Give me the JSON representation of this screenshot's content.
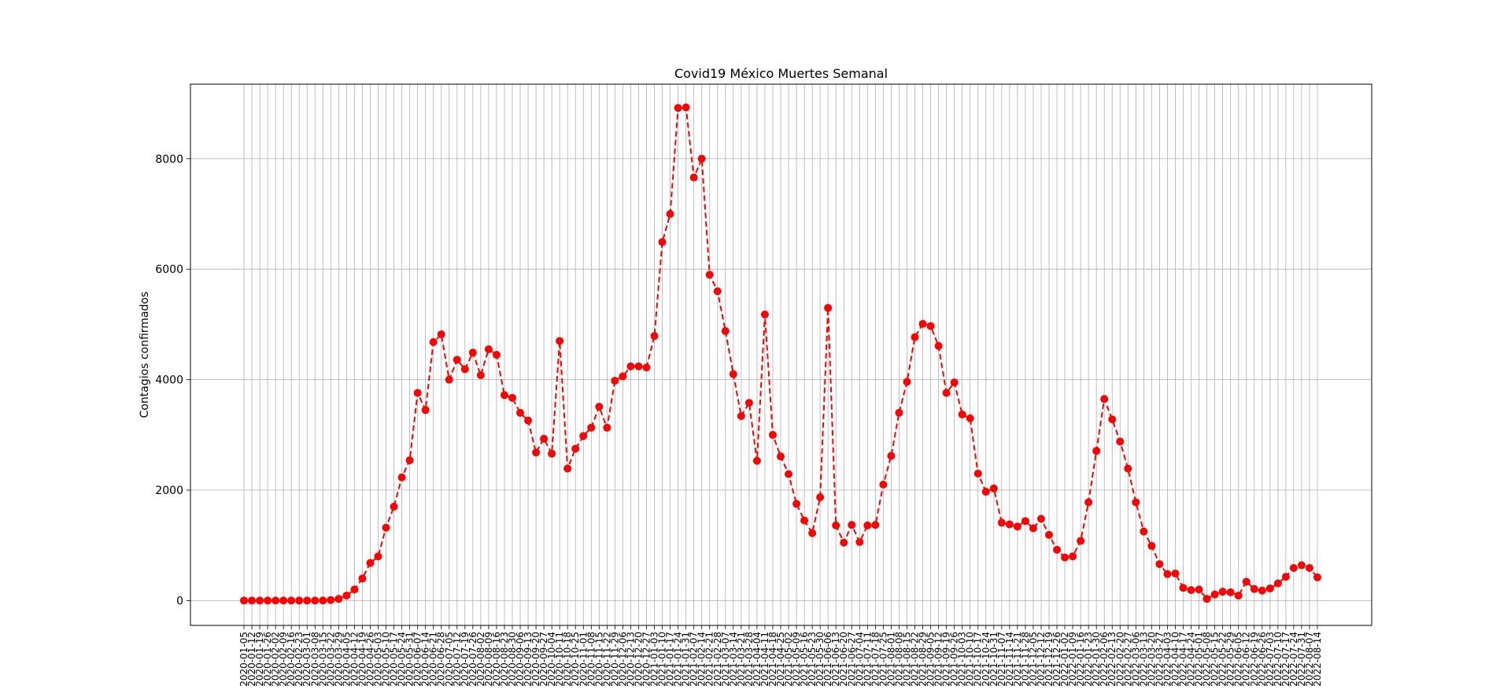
{
  "chart_data": {
    "type": "line",
    "title": "Covid19 México Muertes Semanal",
    "xlabel": "",
    "ylabel": "Contagios confirmados",
    "ylim": [
      -450,
      9350
    ],
    "yticks": [
      0,
      2000,
      4000,
      6000,
      8000
    ],
    "grid": true,
    "series": [
      {
        "color": "#ff0000",
        "line_style": "dashed",
        "marker": "circle",
        "x": [
          "2020-01-05",
          "2020-01-12",
          "2020-01-19",
          "2020-01-26",
          "2020-02-02",
          "2020-02-09",
          "2020-02-16",
          "2020-02-23",
          "2020-03-01",
          "2020-03-08",
          "2020-03-15",
          "2020-03-22",
          "2020-03-29",
          "2020-04-05",
          "2020-04-12",
          "2020-04-19",
          "2020-04-26",
          "2020-05-03",
          "2020-05-10",
          "2020-05-17",
          "2020-05-24",
          "2020-05-31",
          "2020-06-07",
          "2020-06-14",
          "2020-06-21",
          "2020-06-28",
          "2020-07-05",
          "2020-07-12",
          "2020-07-19",
          "2020-07-26",
          "2020-08-02",
          "2020-08-09",
          "2020-08-16",
          "2020-08-23",
          "2020-08-30",
          "2020-09-06",
          "2020-09-13",
          "2020-09-20",
          "2020-09-27",
          "2020-10-04",
          "2020-10-11",
          "2020-10-18",
          "2020-10-25",
          "2020-11-01",
          "2020-11-08",
          "2020-11-15",
          "2020-11-22",
          "2020-11-29",
          "2020-12-06",
          "2020-12-13",
          "2020-12-20",
          "2020-12-27",
          "2021-01-03",
          "2021-01-10",
          "2021-01-17",
          "2021-01-24",
          "2021-01-31",
          "2021-02-07",
          "2021-02-14",
          "2021-02-21",
          "2021-02-28",
          "2021-03-07",
          "2021-03-14",
          "2021-03-21",
          "2021-03-28",
          "2021-04-04",
          "2021-04-11",
          "2021-04-18",
          "2021-04-25",
          "2021-05-02",
          "2021-05-09",
          "2021-05-16",
          "2021-05-23",
          "2021-05-30",
          "2021-06-06",
          "2021-06-13",
          "2021-06-20",
          "2021-06-27",
          "2021-07-04",
          "2021-07-11",
          "2021-07-18",
          "2021-07-25",
          "2021-08-01",
          "2021-08-08",
          "2021-08-15",
          "2021-08-22",
          "2021-08-29",
          "2021-09-05",
          "2021-09-12",
          "2021-09-19",
          "2021-09-26",
          "2021-10-03",
          "2021-10-10",
          "2021-10-17",
          "2021-10-24",
          "2021-10-31",
          "2021-11-07",
          "2021-11-14",
          "2021-11-21",
          "2021-11-28",
          "2021-12-05",
          "2021-12-12",
          "2021-12-19",
          "2021-12-26",
          "2022-01-02",
          "2022-01-09",
          "2022-01-16",
          "2022-01-23",
          "2022-01-30",
          "2022-02-06",
          "2022-02-13",
          "2022-02-20",
          "2022-02-27",
          "2022-03-06",
          "2022-03-13",
          "2022-03-20",
          "2022-03-27",
          "2022-04-03",
          "2022-04-10",
          "2022-04-17",
          "2022-04-24",
          "2022-05-01",
          "2022-05-08",
          "2022-05-15",
          "2022-05-22",
          "2022-05-29",
          "2022-06-05",
          "2022-06-12",
          "2022-06-19",
          "2022-06-26",
          "2022-07-03",
          "2022-07-10",
          "2022-07-17",
          "2022-07-24",
          "2022-07-31",
          "2022-08-07",
          "2022-08-14"
        ],
        "values": [
          0,
          0,
          0,
          0,
          0,
          0,
          0,
          0,
          0,
          0,
          0,
          10,
          30,
          90,
          200,
          400,
          680,
          800,
          1320,
          1700,
          2230,
          2540,
          3760,
          3450,
          4680,
          4820,
          4000,
          4360,
          4190,
          4490,
          4080,
          4550,
          4450,
          3720,
          3670,
          3400,
          3260,
          2680,
          2930,
          2660,
          4700,
          2390,
          2750,
          2980,
          3130,
          3510,
          3130,
          3980,
          4060,
          4240,
          4240,
          4220,
          4790,
          6490,
          7000,
          8920,
          8930,
          7660,
          8000,
          5900,
          5600,
          4880,
          4100,
          3340,
          3580,
          2530,
          5180,
          3000,
          2610,
          2290,
          1750,
          1450,
          1220,
          1870,
          5300,
          1360,
          1050,
          1370,
          1060,
          1360,
          1370,
          2100,
          2620,
          3400,
          3960,
          4770,
          5010,
          4970,
          4610,
          3760,
          3950,
          3370,
          3300,
          2300,
          1970,
          2030,
          1410,
          1380,
          1340,
          1440,
          1310,
          1480,
          1190,
          920,
          780,
          800,
          1080,
          1780,
          2710,
          3650,
          3280,
          2880,
          2390,
          1780,
          1250,
          990,
          660,
          480,
          490,
          230,
          190,
          200,
          30,
          110,
          160,
          150,
          90,
          340,
          210,
          180,
          220,
          310,
          430,
          590,
          640,
          590,
          420
        ]
      }
    ]
  }
}
